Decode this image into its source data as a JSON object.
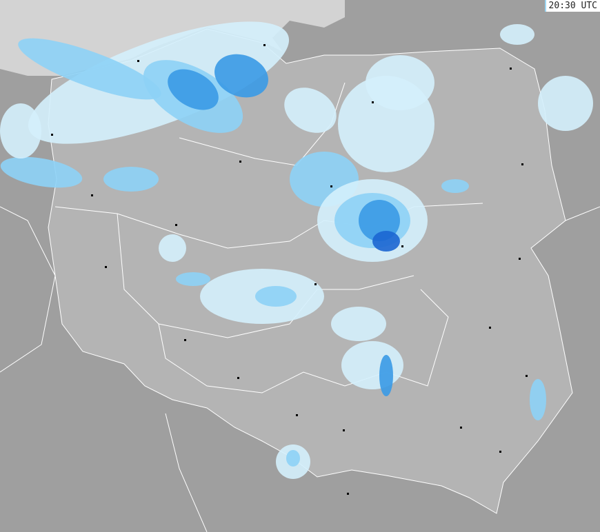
{
  "timestamp": "20:30 UTC",
  "colors": {
    "sea": "#d3d3d3",
    "country": "#b4b4b4",
    "neighbors": "#9f9f9f",
    "precip_light": "#d4f0fc",
    "precip_moderate": "#8dd2f6",
    "precip_heavy": "#3a9ae6",
    "precip_very_heavy": "#1c66d2"
  }
}
